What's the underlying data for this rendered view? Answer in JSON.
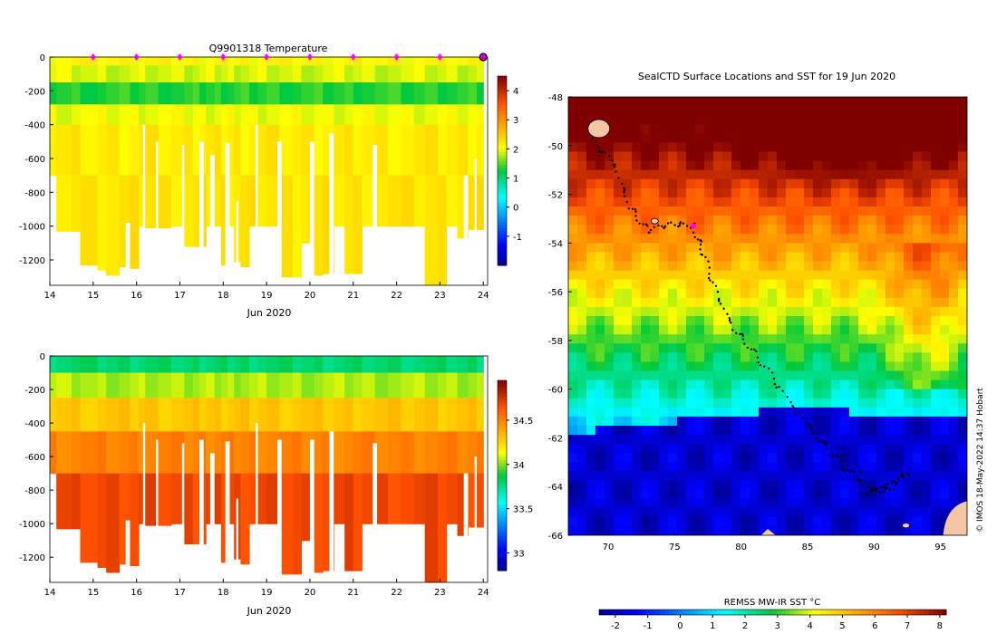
{
  "chart_data": [
    {
      "type": "heatmap",
      "id": "temperature",
      "title": "Q9901318  Temperature",
      "xlabel": "Jun 2020",
      "xlim": [
        14,
        24.1
      ],
      "xticks": [
        14,
        15,
        16,
        17,
        18,
        19,
        20,
        21,
        22,
        23,
        24
      ],
      "ylim": [
        -1350,
        0
      ],
      "yticks": [
        0,
        -200,
        -400,
        -600,
        -800,
        -1000,
        -1200
      ],
      "colorbar": {
        "min": -2.0,
        "max": 4.5,
        "ticks": [
          -1,
          0,
          1,
          2,
          3,
          4
        ]
      },
      "surface_markers_x": [
        15,
        16,
        17,
        18,
        19,
        20,
        21,
        22,
        23
      ],
      "last_marker_x": 24,
      "profile_layers": [
        {
          "from": 0,
          "to": -50,
          "value": 2.1
        },
        {
          "from": -50,
          "to": -150,
          "value": 1.9
        },
        {
          "from": -150,
          "to": -280,
          "value": 1.35
        },
        {
          "from": -280,
          "to": -400,
          "value": 2.0
        },
        {
          "from": -400,
          "to": -700,
          "value": 2.2
        },
        {
          "from": -700,
          "to": -1350,
          "value": 2.25
        }
      ]
    },
    {
      "type": "heatmap",
      "id": "salinity",
      "title": "",
      "xlabel": "Jun 2020",
      "xlim": [
        14,
        24.1
      ],
      "xticks": [
        14,
        15,
        16,
        17,
        18,
        19,
        20,
        21,
        22,
        23,
        24
      ],
      "ylim": [
        -1350,
        0
      ],
      "yticks": [
        0,
        -200,
        -400,
        -600,
        -800,
        -1000,
        -1200
      ],
      "colorbar": {
        "min": 32.8,
        "max": 34.95,
        "ticks": [
          33,
          33.5,
          34,
          34.5
        ]
      },
      "profile_layers": [
        {
          "from": 0,
          "to": -100,
          "value": 33.8
        },
        {
          "from": -100,
          "to": -250,
          "value": 34.05
        },
        {
          "from": -250,
          "to": -450,
          "value": 34.3
        },
        {
          "from": -450,
          "to": -700,
          "value": 34.5
        },
        {
          "from": -700,
          "to": -1350,
          "value": 34.68
        }
      ]
    },
    {
      "type": "heatmap",
      "id": "sst_map",
      "title": "SealCTD Surface Locations and SST for 19 Jun 2020",
      "xlim": [
        67,
        97
      ],
      "ylim": [
        -66,
        -48
      ],
      "xticks": [
        70,
        75,
        80,
        85,
        90,
        95
      ],
      "yticks": [
        -48,
        -50,
        -52,
        -54,
        -56,
        -58,
        -60,
        -62,
        -64,
        -66
      ],
      "colorbar": {
        "label": "REMSS MW-IR SST °C",
        "min": -2.5,
        "max": 8.2,
        "ticks": [
          -2,
          -1,
          0,
          1,
          2,
          3,
          4,
          5,
          6,
          7,
          8
        ]
      },
      "current_position": [
        76.4,
        -53.3
      ],
      "track_start": [
        68.8,
        -49.8
      ],
      "track_end": [
        91.5,
        -64.0
      ]
    }
  ],
  "dive_profiles": [
    [
      14.0,
      -700
    ],
    [
      14.15,
      -1030
    ],
    [
      14.5,
      -1030
    ],
    [
      14.7,
      -1230
    ],
    [
      15.1,
      -1260
    ],
    [
      15.3,
      -1290
    ],
    [
      15.6,
      -1240
    ],
    [
      15.85,
      -1250
    ],
    [
      16.05,
      -1000
    ],
    [
      16.2,
      -1010
    ],
    [
      16.5,
      -1010
    ],
    [
      16.8,
      -1000
    ],
    [
      17.1,
      -1120
    ],
    [
      17.3,
      -1120
    ],
    [
      17.45,
      -1120
    ],
    [
      17.6,
      -1000
    ],
    [
      17.8,
      -1000
    ],
    [
      17.95,
      -1230
    ],
    [
      18.1,
      -1000
    ],
    [
      18.25,
      -1210
    ],
    [
      18.4,
      -1240
    ],
    [
      18.6,
      -1000
    ],
    [
      18.8,
      -1000
    ],
    [
      19.0,
      -1000
    ],
    [
      19.3,
      -1300
    ],
    [
      19.6,
      -1300
    ],
    [
      19.8,
      -1100
    ],
    [
      20.1,
      -1290
    ],
    [
      20.3,
      -1280
    ],
    [
      20.55,
      -1000
    ],
    [
      20.8,
      -1280
    ],
    [
      21.0,
      -1280
    ],
    [
      21.2,
      -1000
    ],
    [
      21.5,
      -1000
    ],
    [
      21.8,
      -1000
    ],
    [
      22.1,
      -1000
    ],
    [
      22.4,
      -1000
    ],
    [
      22.65,
      -1350
    ],
    [
      22.95,
      -1350
    ],
    [
      23.15,
      -1000
    ],
    [
      23.4,
      -1070
    ],
    [
      23.65,
      -1020
    ],
    [
      23.85,
      -1020
    ],
    [
      24.0,
      -300
    ]
  ],
  "gaps": [
    [
      15.75,
      15.85,
      -980
    ],
    [
      16.15,
      16.2,
      -400
    ],
    [
      16.45,
      16.5,
      -500
    ],
    [
      17.05,
      17.1,
      -520
    ],
    [
      17.45,
      17.55,
      -500
    ],
    [
      17.7,
      17.8,
      -580
    ],
    [
      18.05,
      18.15,
      -510
    ],
    [
      18.3,
      18.35,
      -850
    ],
    [
      18.75,
      18.8,
      -400
    ],
    [
      19.25,
      19.35,
      -500
    ],
    [
      20.0,
      20.1,
      -500
    ],
    [
      20.45,
      20.55,
      -450
    ],
    [
      21.45,
      21.55,
      -520
    ],
    [
      23.55,
      23.65,
      -700
    ],
    [
      23.8,
      23.85,
      -600
    ]
  ],
  "map_text": {
    "attribution": "© IMOS 18-May-2022 14:37 Hobart"
  }
}
